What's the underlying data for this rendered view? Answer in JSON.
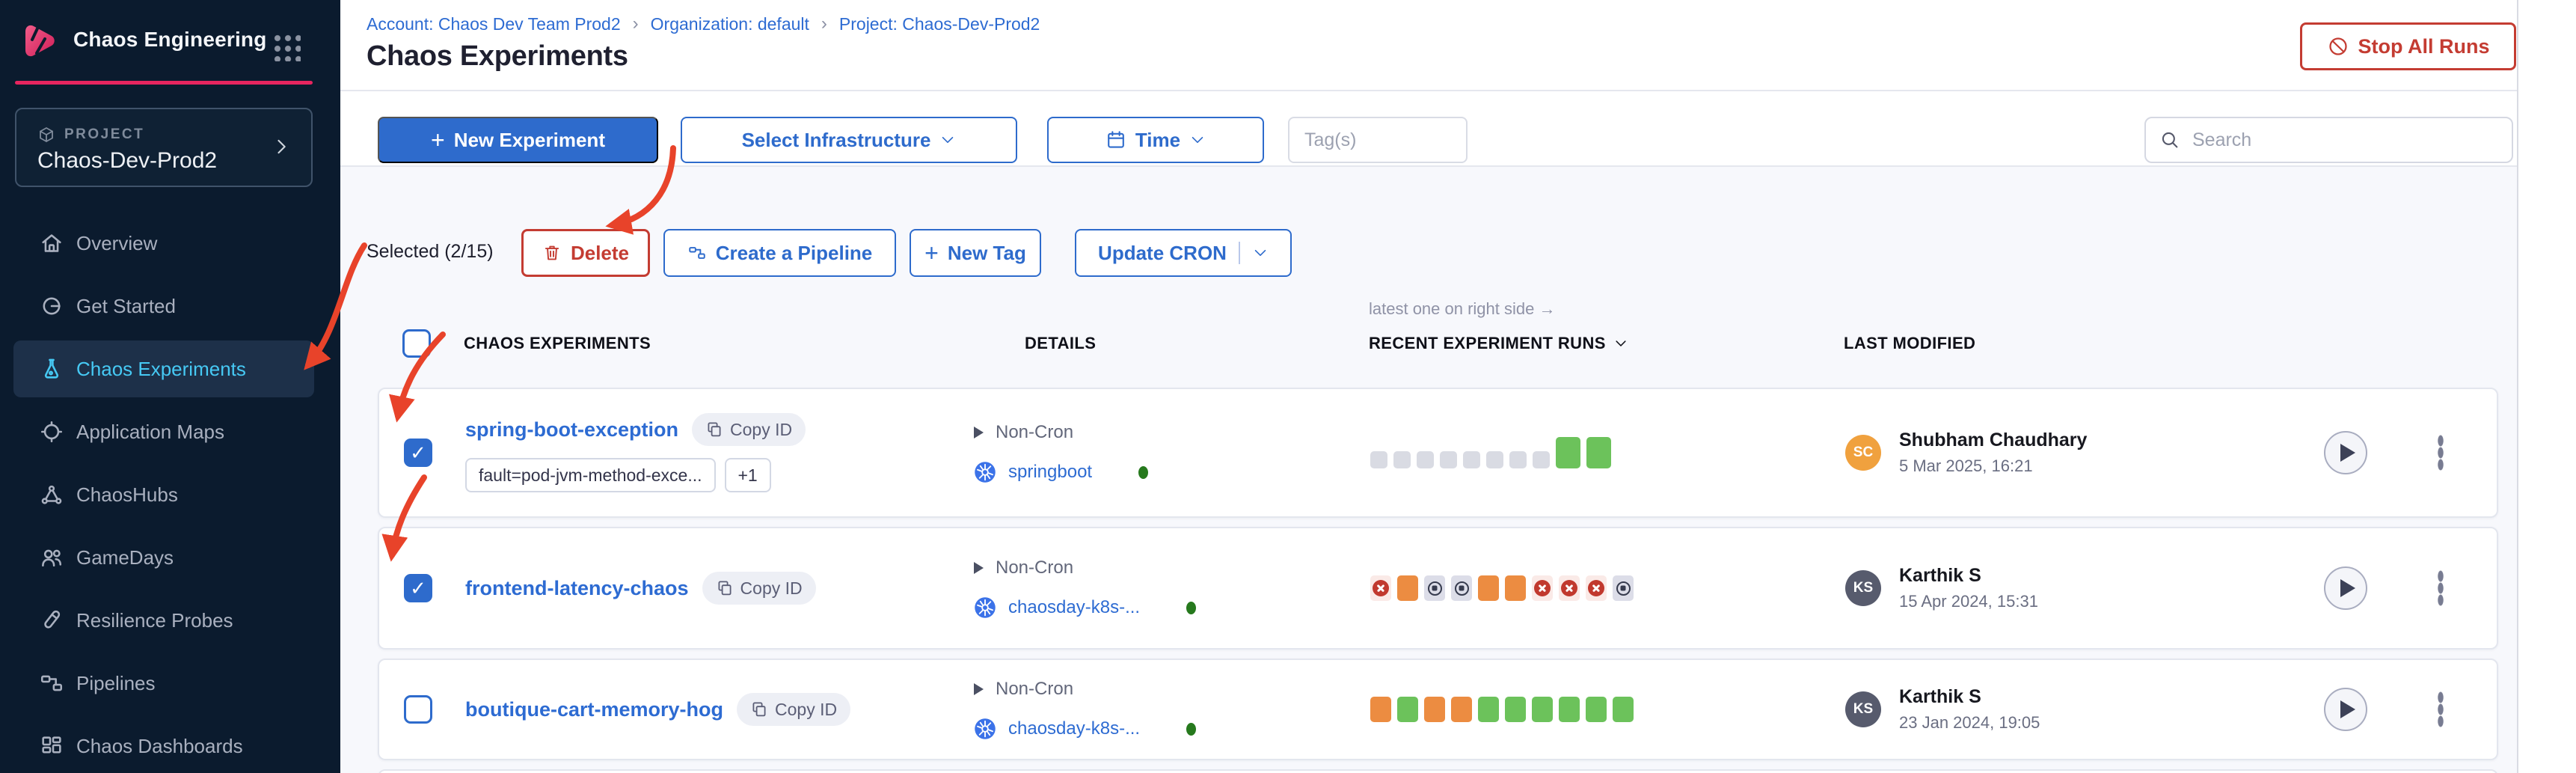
{
  "brand": {
    "product": "Chaos Engineering"
  },
  "project_card": {
    "label": "PROJECT",
    "name": "Chaos-Dev-Prod2"
  },
  "sidebar": {
    "items": [
      {
        "label": "Overview",
        "icon": "home",
        "active": false
      },
      {
        "label": "Get Started",
        "icon": "get-started",
        "active": false
      },
      {
        "label": "Chaos Experiments",
        "icon": "flask",
        "active": true
      },
      {
        "label": "Application Maps",
        "icon": "app-maps",
        "active": false
      },
      {
        "label": "ChaosHubs",
        "icon": "hub",
        "active": false
      },
      {
        "label": "GameDays",
        "icon": "gamedays",
        "active": false
      },
      {
        "label": "Resilience Probes",
        "icon": "probe",
        "active": false
      },
      {
        "label": "Pipelines",
        "icon": "pipeline",
        "active": false
      },
      {
        "label": "Chaos Dashboards",
        "icon": "dashboard",
        "active": false
      }
    ]
  },
  "breadcrumb": {
    "separator": "›",
    "items": [
      "Account: Chaos Dev Team Prod2",
      "Organization: default",
      "Project: Chaos-Dev-Prod2"
    ]
  },
  "page": {
    "title": "Chaos Experiments",
    "stop_all_runs": "Stop All Runs"
  },
  "toolbar": {
    "plus": "+",
    "new_experiment": "New Experiment",
    "select_infrastructure": "Select Infrastructure",
    "time": "Time",
    "tags_placeholder": "Tag(s)",
    "search_placeholder": "Search"
  },
  "selection": {
    "label": "Selected (2/15)",
    "delete": "Delete",
    "create_pipeline": "Create a Pipeline",
    "new_tag": "New Tag",
    "update_cron": "Update CRON"
  },
  "table": {
    "note": "latest one on right side →",
    "col_experiments": "CHAOS EXPERIMENTS",
    "col_details": "DETAILS",
    "col_runs": "RECENT EXPERIMENT RUNS",
    "col_modified": "LAST MODIFIED"
  },
  "rows": [
    {
      "name": "spring-boot-exception",
      "copy_label": "Copy ID",
      "checked": true,
      "tags": [
        "fault=pod-jvm-method-exce...",
        "+1"
      ],
      "schedule": "Non-Cron",
      "infra": "springboot",
      "runs": [
        "none",
        "none",
        "none",
        "none",
        "none",
        "none",
        "none",
        "none",
        "pass-big",
        "pass-big"
      ],
      "user": {
        "initials": "SC",
        "color_key": "avatar_sc",
        "name": "Shubham Chaudhary",
        "date": "5 Mar 2025, 16:21"
      }
    },
    {
      "name": "frontend-latency-chaos",
      "copy_label": "Copy ID",
      "checked": true,
      "tags": [],
      "schedule": "Non-Cron",
      "infra": "chaosday-k8s-...",
      "runs": [
        "fail",
        "running",
        "stop",
        "stop",
        "running",
        "running",
        "fail",
        "fail",
        "fail",
        "stop"
      ],
      "user": {
        "initials": "KS",
        "color_key": "avatar_ks",
        "name": "Karthik S",
        "date": "15 Apr 2024, 15:31"
      }
    },
    {
      "name": "boutique-cart-memory-hog",
      "copy_label": "Copy ID",
      "checked": false,
      "tags": [],
      "schedule": "Non-Cron",
      "infra": "chaosday-k8s-...",
      "runs": [
        "running",
        "pass",
        "running",
        "running",
        "pass",
        "pass",
        "pass",
        "pass",
        "pass",
        "pass"
      ],
      "user": {
        "initials": "KS",
        "color_key": "avatar_ks",
        "name": "Karthik S",
        "date": "23 Jan 2024, 19:05"
      }
    }
  ],
  "icons": {
    "check": "✓"
  },
  "colors": {
    "accent": "#2e6bcc",
    "danger": "#c43c32",
    "annotation": "#e8432a",
    "run_none": "#d9dbe3",
    "run_pass": "#6cc25b",
    "run_running": "#ec8c41",
    "run_fail_bg": "#faeae7",
    "run_fail": "#c1392e",
    "run_stop_bg": "#dcdde8",
    "run_stop": "#363b4e",
    "avatar_sc": "#f0a13e",
    "avatar_ks": "#575b6d"
  }
}
